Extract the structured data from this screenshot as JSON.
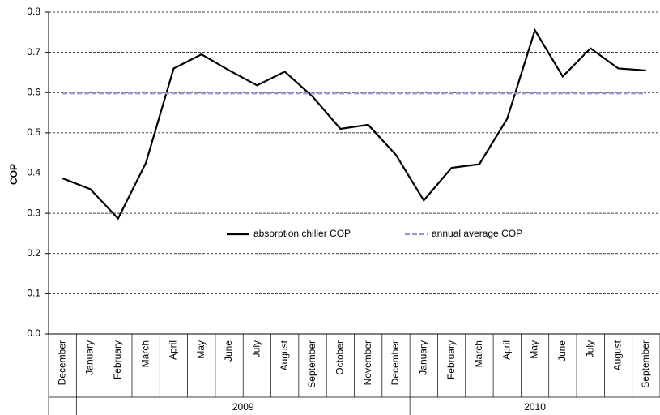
{
  "chart_data": {
    "type": "line",
    "y_label": "COP",
    "categories": [
      "December",
      "January",
      "February",
      "March",
      "April",
      "May",
      "June",
      "July",
      "August",
      "September",
      "October",
      "November",
      "December",
      "January",
      "February",
      "March",
      "April",
      "May",
      "June",
      "July",
      "August",
      "September"
    ],
    "groups": [
      {
        "label": "2009",
        "first": 1,
        "last": 12
      },
      {
        "label": "2010",
        "first": 13,
        "last": 21
      }
    ],
    "series": [
      {
        "name": "absorption chiller COP",
        "color": "#000000",
        "style": "solid",
        "values": [
          0.387,
          0.36,
          0.287,
          0.425,
          0.66,
          0.695,
          0.655,
          0.618,
          0.652,
          0.59,
          0.51,
          0.52,
          0.445,
          0.332,
          0.413,
          0.422,
          0.535,
          0.755,
          0.64,
          0.71,
          0.66,
          0.655
        ]
      },
      {
        "name": "annual average COP",
        "color": "#9a9ac8",
        "style": "dashed",
        "values": [
          0.598,
          0.598,
          0.598,
          0.598,
          0.598,
          0.598,
          0.598,
          0.598,
          0.598,
          0.598,
          0.598,
          0.598,
          0.598,
          0.598,
          0.598,
          0.598,
          0.598,
          0.598,
          0.598,
          0.598,
          0.598,
          0.598
        ]
      }
    ],
    "ylim": [
      0,
      0.8
    ],
    "yticks": [
      {
        "value": 0,
        "label": "0.0"
      },
      0.1,
      0.2,
      0.3,
      0.4,
      0.5,
      0.6,
      0.7,
      0.8
    ],
    "grid": true
  }
}
